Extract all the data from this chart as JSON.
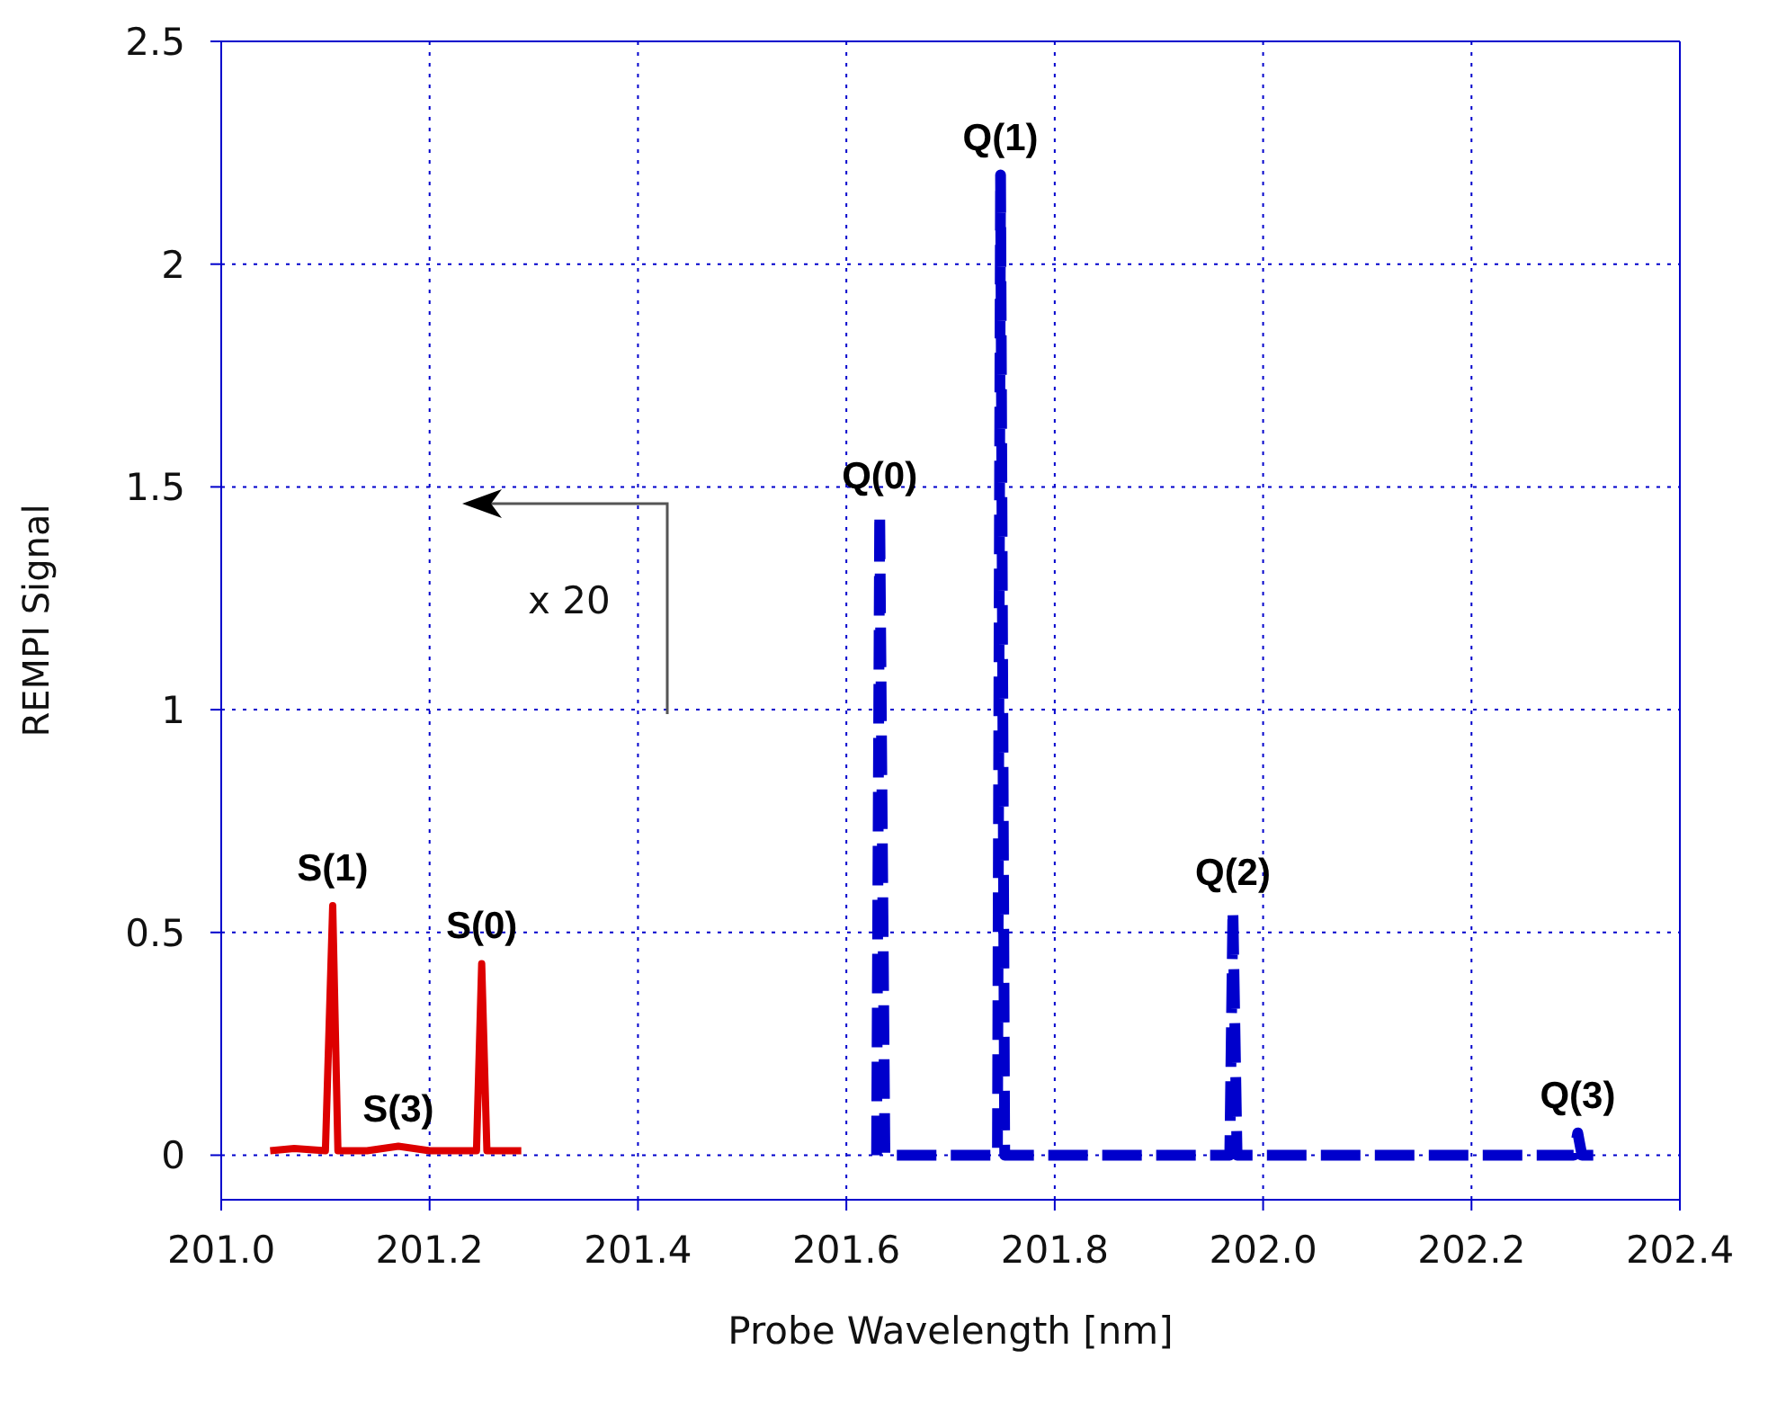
{
  "chart_data": {
    "type": "line",
    "xlabel": "Probe Wavelength [nm]",
    "ylabel": "REMPI Signal",
    "xlim": [
      201.0,
      202.4
    ],
    "xticks": [
      {
        "value": 201.0,
        "label": "201.0"
      },
      {
        "value": 201.2,
        "label": "201.2"
      },
      {
        "value": 201.4,
        "label": "201.4"
      },
      {
        "value": 201.6,
        "label": "201.6"
      },
      {
        "value": 201.8,
        "label": "201.8"
      },
      {
        "value": 202.0,
        "label": "202.0"
      },
      {
        "value": 202.2,
        "label": "202.2"
      },
      {
        "value": 202.4,
        "label": "202.4"
      }
    ],
    "ylim": [
      -0.1,
      2.5
    ],
    "yticks": [
      0,
      0.5,
      1,
      1.5,
      2,
      2.5
    ],
    "grid": true,
    "marker": "none",
    "series": [
      {
        "color": "#dd0000",
        "line_style": "solid",
        "x": [
          201.047,
          201.07,
          201.1,
          201.107,
          201.112,
          201.14,
          201.17,
          201.2,
          201.245,
          201.25,
          201.255,
          201.27,
          201.288
        ],
        "values": [
          0.01,
          0.015,
          0.01,
          0.56,
          0.01,
          0.01,
          0.02,
          0.01,
          0.01,
          0.43,
          0.01,
          0.01,
          0.01
        ]
      },
      {
        "color": "#0000cc",
        "line_style": "dashed",
        "x": [
          201.629,
          201.632,
          201.637,
          201.745,
          201.748,
          201.752,
          201.968,
          201.971,
          201.975,
          202.298,
          202.302,
          202.306,
          202.328
        ],
        "values": [
          0,
          1.44,
          0,
          0,
          2.2,
          0,
          0,
          0.55,
          0,
          0,
          0.05,
          0,
          0
        ]
      }
    ],
    "annotations": [
      {
        "text": "S(1)",
        "x": 201.107,
        "y": 0.56
      },
      {
        "text": "S(0)",
        "x": 201.25,
        "y": 0.43
      },
      {
        "text": "S(3)",
        "x": 201.17,
        "y": 0.02
      },
      {
        "text": "Q(0)",
        "x": 201.632,
        "y": 1.44
      },
      {
        "text": "Q(1)",
        "x": 201.748,
        "y": 2.2
      },
      {
        "text": "Q(2)",
        "x": 201.971,
        "y": 0.55
      },
      {
        "text": "Q(3)",
        "x": 202.302,
        "y": 0.05
      },
      "x 20"
    ]
  }
}
